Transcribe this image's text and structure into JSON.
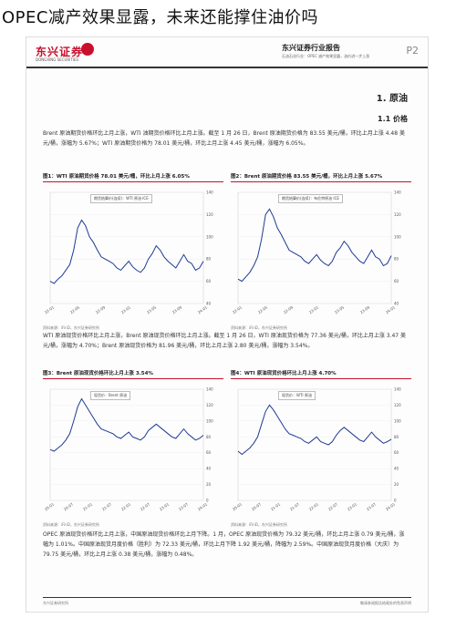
{
  "headline": "OPEC减产效果显露，未来还能撑住油价吗",
  "header": {
    "logo": "东兴证券",
    "logo_sub": "DONGXING SECURITIES",
    "report_title": "东兴证券行业报告",
    "report_sub": "石油石化行业：OPEC 减产效果显露，油价进一步上涨",
    "page": "P2"
  },
  "section": {
    "h1": "1. 原油",
    "h11": "1.1 价格"
  },
  "paragraphs": [
    "Brent 原油期货价格环比上月上涨，WTI 油期货价格环比上月上涨。截至 1 月 26 日，Brent 原油期货价格为 83.55 美元/桶，环比上月上涨 4.48 美元/桶，涨幅为 5.67%；WTI 原油期货价格为 78.01 美元/桶，环比上月上涨 4.45 美元/桶，涨幅为 6.05%。",
    "WTI 原油现货价格环比上月上涨，Brent 原油现货价格环比上月上涨。截至 1 月 26 日，WTI 原油现货价格为 77.36 美元/桶，环比上月上涨 3.47 美元/桶，涨幅为 4.70%；Brent 原油现货价格为 81.96 美元/桶，环比上月上涨 2.80 美元/桶，涨幅为 3.54%。",
    "OPEC 原油现货价格环比上月上涨，中国原油现货价格环比上月下降。1 月，OPEC 原油现货价格为 79.32 美元/桶，环比上月上涨 0.79 美元/桶，涨幅为 1.01%。中国原油现货月度价格（胜利）为 72.33 美元/桶，环比上月下降 1.92 美元/桶，降幅为 2.59%。中国原油现货月度价格（大庆）为 79.75 美元/桶，环比上月上涨 0.38 美元/桶，涨幅为 0.48%。"
  ],
  "figures": [
    {
      "title": "图1：WTI 原油期货价格 78.01 美元/桶，环比上月上涨 6.05%",
      "legend": "期货结算价(连续)：WTI 原油 ICE",
      "source": "资料来源：iFinD，东兴证券研究所"
    },
    {
      "title": "图2：Brent 原油期货价格 83.55 美元/桶，环比上月上涨 5.67%",
      "legend": "期货结算价(连续)：布伦特原油 ICE",
      "source": "资料来源：iFinD，东兴证券研究所"
    },
    {
      "title": "图3：Brent 原油现货价格环比上月上涨 3.54%",
      "legend": "现货价：Brent 原油",
      "source": "资料来源：iFinD，东兴证券研究所"
    },
    {
      "title": "图4：WTI 原油现货价格环比上月上涨 4.70%",
      "legend": "现货价：WTI 原油",
      "source": "资料来源：iFinD，东兴证券研究所"
    }
  ],
  "footer": {
    "left": "东兴证券研究所",
    "right": "敬请参阅报告结尾处的免责声明"
  },
  "chart_data": [
    {
      "type": "line",
      "series": [
        {
          "values": [
            60,
            58,
            62,
            65,
            70,
            75,
            88,
            108,
            115,
            110,
            100,
            95,
            88,
            82,
            80,
            78,
            76,
            72,
            70,
            74,
            78,
            73,
            70,
            68,
            72,
            80,
            85,
            92,
            88,
            82,
            78,
            75,
            72,
            78,
            84,
            78,
            76,
            70,
            72,
            78
          ]
        }
      ],
      "ylim": [
        40,
        140
      ],
      "yticks": [
        "40",
        "60",
        "80",
        "100",
        "120",
        "140"
      ],
      "xticks": [
        "22-01",
        "22-05",
        "22-09",
        "23-01",
        "23-05",
        "23-09",
        "24-01"
      ]
    },
    {
      "type": "line",
      "series": [
        {
          "values": [
            62,
            60,
            64,
            68,
            74,
            82,
            98,
            120,
            125,
            118,
            108,
            102,
            95,
            88,
            86,
            84,
            82,
            78,
            76,
            80,
            84,
            79,
            76,
            74,
            78,
            86,
            90,
            96,
            92,
            86,
            82,
            78,
            76,
            82,
            88,
            82,
            80,
            74,
            76,
            83
          ]
        }
      ],
      "ylim": [
        40,
        140
      ],
      "yticks": [
        "40",
        "60",
        "80",
        "100",
        "120",
        "140"
      ],
      "xticks": [
        "22-01",
        "22-05",
        "22-09",
        "23-01",
        "23-05",
        "23-09",
        "24-01"
      ]
    },
    {
      "type": "line",
      "series": [
        {
          "values": [
            64,
            62,
            66,
            70,
            76,
            84,
            100,
            118,
            128,
            120,
            112,
            104,
            96,
            90,
            88,
            86,
            84,
            80,
            78,
            82,
            86,
            80,
            78,
            76,
            80,
            88,
            92,
            96,
            92,
            88,
            84,
            80,
            78,
            84,
            90,
            84,
            80,
            76,
            78,
            82
          ]
        }
      ],
      "ylim": [
        0,
        140
      ],
      "yticks": [
        "0",
        "20",
        "40",
        "60",
        "80",
        "100",
        "120",
        "140"
      ],
      "xticks": [
        "20-01",
        "20-07",
        "21-01",
        "21-07",
        "22-01",
        "22-07",
        "23-01",
        "23-07",
        "24-01"
      ]
    },
    {
      "type": "line",
      "series": [
        {
          "values": [
            62,
            58,
            62,
            66,
            72,
            80,
            96,
            112,
            120,
            114,
            106,
            98,
            90,
            84,
            82,
            80,
            78,
            74,
            72,
            76,
            80,
            74,
            72,
            70,
            74,
            82,
            88,
            92,
            88,
            84,
            80,
            76,
            74,
            80,
            86,
            80,
            76,
            72,
            74,
            77
          ]
        }
      ],
      "ylim": [
        0,
        140
      ],
      "yticks": [
        "0",
        "20",
        "40",
        "60",
        "80",
        "100",
        "120",
        "140"
      ],
      "xticks": [
        "20-01",
        "20-07",
        "21-01",
        "21-07",
        "22-01",
        "22-07",
        "23-01",
        "23-07",
        "24-01"
      ]
    }
  ]
}
